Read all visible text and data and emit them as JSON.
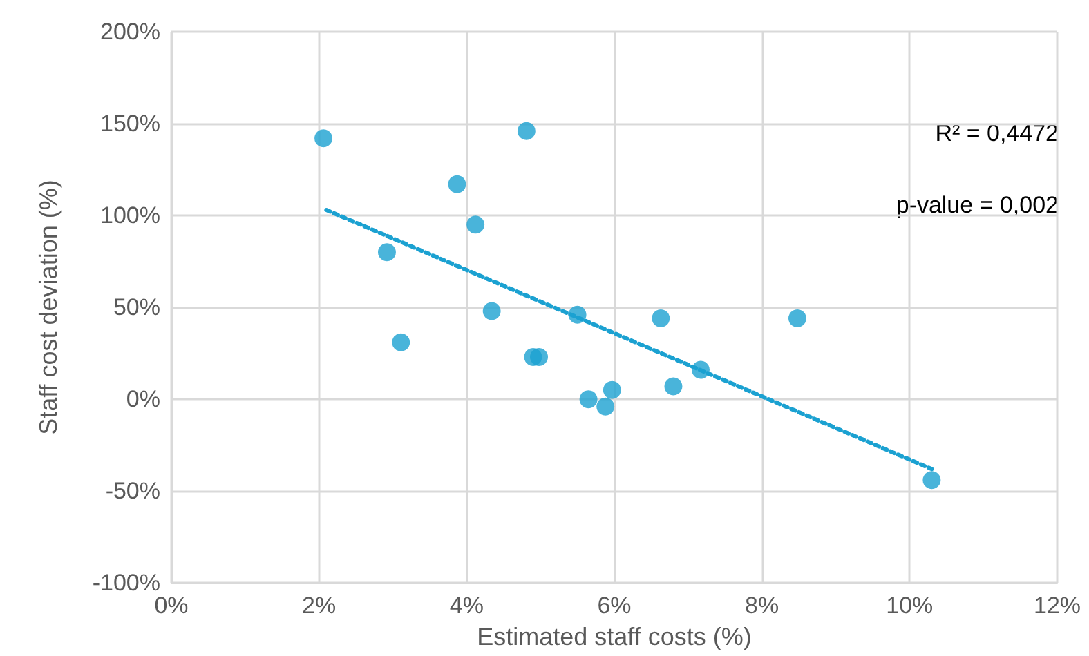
{
  "chart_data": {
    "type": "scatter",
    "xlabel": "Estimated staff costs (%)",
    "ylabel": "Staff cost deviation (%)",
    "series": [
      {
        "color": "#1ba1d1",
        "marker": "circle",
        "x": [
          2.06,
          4.81,
          3.87,
          4.12,
          2.92,
          3.11,
          4.34,
          5.5,
          4.9,
          4.98,
          5.65,
          5.97,
          5.88,
          6.63,
          6.8,
          7.17,
          8.48,
          10.3
        ],
        "values": [
          142,
          146,
          117,
          95,
          80,
          31,
          48,
          46,
          23,
          23,
          0,
          5,
          -4,
          44,
          7,
          16,
          44,
          -44
        ]
      },
      {
        "type": "line",
        "color": "#1ba1d1",
        "line_style": "dotted",
        "x": [
          2.1,
          10.3
        ],
        "values": [
          103,
          -38
        ]
      }
    ],
    "xlim": [
      0,
      12
    ],
    "xticks": [
      {
        "value": 0,
        "label": "0%"
      },
      {
        "value": 2,
        "label": "2%"
      },
      {
        "value": 4,
        "label": "4%"
      },
      {
        "value": 6,
        "label": "6%"
      },
      {
        "value": 8,
        "label": "8%"
      },
      {
        "value": 10,
        "label": "10%"
      },
      {
        "value": 12,
        "label": "12%"
      }
    ],
    "ylim": [
      -100,
      200
    ],
    "yticks": [
      {
        "value": -100,
        "label": "-100%"
      },
      {
        "value": -50,
        "label": "-50%"
      },
      {
        "value": 0,
        "label": "0%"
      },
      {
        "value": 50,
        "label": "50%"
      },
      {
        "value": 100,
        "label": "100%"
      },
      {
        "value": 150,
        "label": "150%"
      },
      {
        "value": 200,
        "label": "200%"
      }
    ],
    "grid": true,
    "annotations": [
      "R² = 0,4472",
      "p-value = 0,002"
    ]
  }
}
